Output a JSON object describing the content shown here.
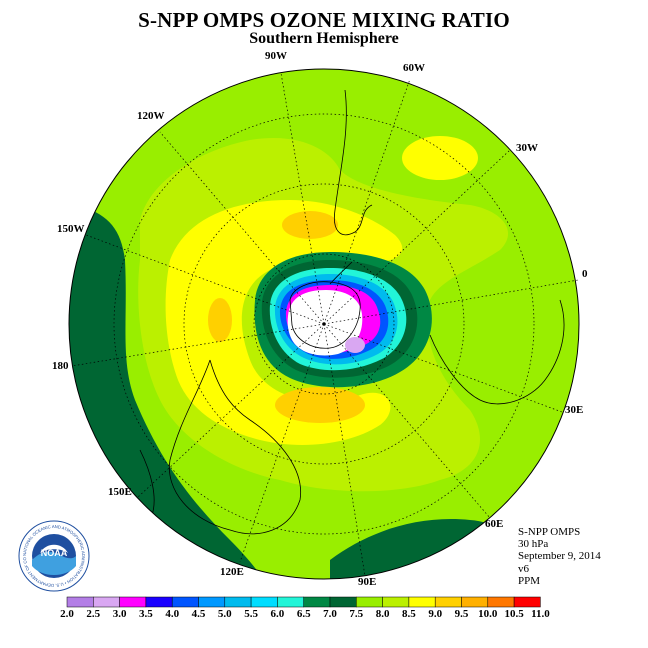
{
  "title": "S-NPP OMPS OZONE MIXING RATIO",
  "subtitle": "Southern Hemisphere",
  "longitude_labels": {
    "w90": "90W",
    "w60": "60W",
    "w120": "120W",
    "w30": "30W",
    "w150": "150W",
    "zero": "0",
    "e180": "180",
    "e30": "30E",
    "e150": "150E",
    "e60": "60E",
    "e120": "120E",
    "e90": "90E"
  },
  "info": {
    "instrument": "S-NPP OMPS",
    "level": "30 hPa",
    "date": "September 9, 2014",
    "version": "v6",
    "units": "PPM"
  },
  "logo": {
    "name": "noaa-logo",
    "text": "NOAA",
    "ring_text": "NATIONAL OCEANIC AND ATMOSPHERIC ADMINISTRATION • U.S. DEPARTMENT OF COMMERCE"
  },
  "colorbar": {
    "ticks": [
      "2.0",
      "2.5",
      "3.0",
      "3.5",
      "4.0",
      "4.5",
      "5.0",
      "5.5",
      "6.0",
      "6.5",
      "7.0",
      "7.5",
      "8.0",
      "8.5",
      "9.0",
      "9.5",
      "10.0",
      "10.5",
      "11.0"
    ],
    "colors": [
      "#b37ee6",
      "#d9a7f2",
      "#ff00ff",
      "#1a00ff",
      "#0055ff",
      "#0099ff",
      "#00bbee",
      "#00ddff",
      "#22f5d8",
      "#008844",
      "#006633",
      "#99ee00",
      "#bbf000",
      "#ffff00",
      "#ffd000",
      "#ffb000",
      "#ff7700",
      "#ff0000",
      "#8b5a3c"
    ]
  }
}
